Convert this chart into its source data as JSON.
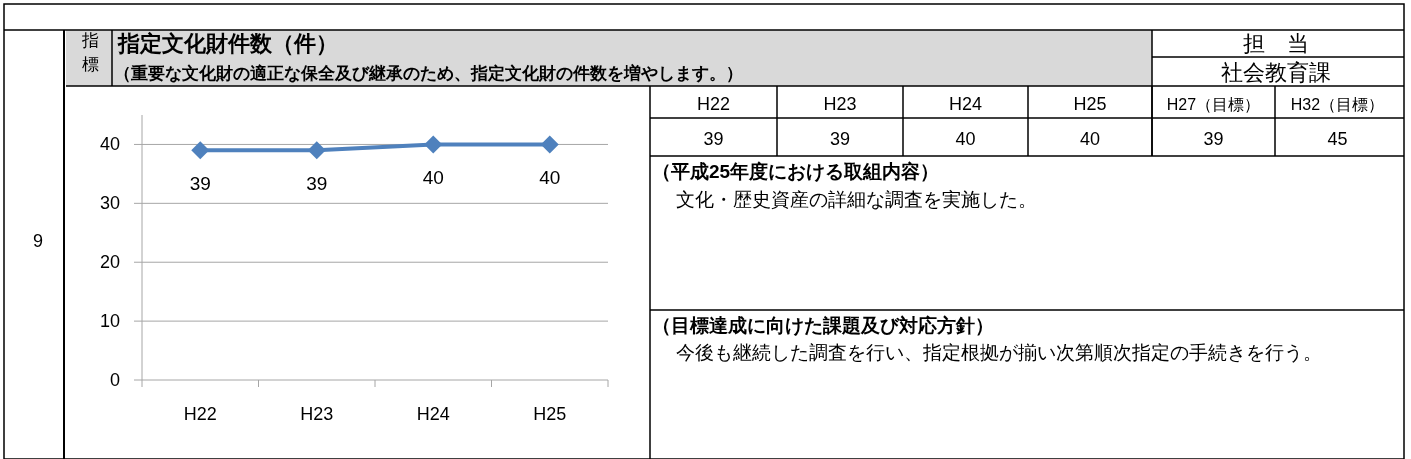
{
  "chart_data": {
    "type": "line",
    "title": "指定文化財件数（件）",
    "subtitle": "（重要な文化財の適正な保全及び継承のため、指定文化財の件数を増やします。）",
    "categories": [
      "H22",
      "H23",
      "H24",
      "H25"
    ],
    "values": [
      39,
      39,
      40,
      40
    ],
    "color": "#4f81bd",
    "ylim": [
      0,
      45
    ],
    "yticks": [
      0,
      10,
      20,
      30,
      40
    ],
    "grid": "y",
    "marker": "diamond",
    "data_labels": true,
    "annotations": [
      "9",
      "指標",
      "担　当",
      "社会教育課",
      "H22",
      "H23",
      "H24",
      "H25",
      "H27（目標）",
      "H32（目標）",
      "39",
      "39",
      "40",
      "40",
      "39",
      "45",
      "（平成25年度における取組内容）",
      "文化・歴史資産の詳細な調査を実施した。",
      "（目標達成に向けた課題及び対応方針）",
      "今後も継続した調査を行い、指定根拠が揃い次第順次指定の手続きを行う。"
    ]
  }
}
